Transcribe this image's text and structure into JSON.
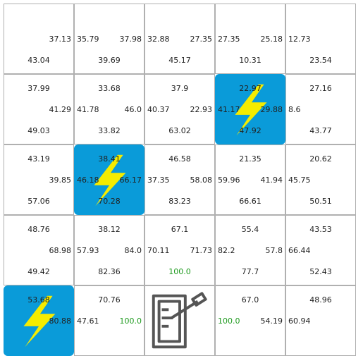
{
  "grid": {
    "rows": 5,
    "cols": 5,
    "cells": [
      {
        "row": 0,
        "col": 0,
        "type": "normal",
        "top": "",
        "left": "",
        "right": "37.13",
        "bottom": "43.04"
      },
      {
        "row": 0,
        "col": 1,
        "type": "normal",
        "top": "",
        "left": "35.79",
        "right": "37.98",
        "bottom": "39.69"
      },
      {
        "row": 0,
        "col": 2,
        "type": "normal",
        "top": "",
        "left": "32.88",
        "right": "27.35",
        "bottom": "45.17"
      },
      {
        "row": 0,
        "col": 3,
        "type": "normal",
        "top": "",
        "left": "27.35",
        "right": "25.18",
        "bottom": "10.31"
      },
      {
        "row": 0,
        "col": 4,
        "type": "normal",
        "top": "",
        "left": "12.73",
        "right": "",
        "bottom": "23.54"
      },
      {
        "row": 1,
        "col": 0,
        "type": "normal",
        "top": "37.99",
        "left": "",
        "right": "41.29",
        "bottom": "49.03"
      },
      {
        "row": 1,
        "col": 1,
        "type": "normal",
        "top": "33.68",
        "left": "41.78",
        "right": "46.0",
        "bottom": "33.82"
      },
      {
        "row": 1,
        "col": 2,
        "type": "normal",
        "top": "37.9",
        "left": "40.37",
        "right": "22.93",
        "bottom": "63.02"
      },
      {
        "row": 1,
        "col": 3,
        "type": "lightning",
        "icon": "lightning-icon",
        "top": "22.97",
        "left": "41.17",
        "right": "29.88",
        "bottom": "47.92"
      },
      {
        "row": 1,
        "col": 4,
        "type": "normal",
        "top": "27.16",
        "left": "8.6",
        "right": "",
        "bottom": "43.77"
      },
      {
        "row": 2,
        "col": 0,
        "type": "normal",
        "top": "43.19",
        "left": "",
        "right": "39.85",
        "bottom": "57.06"
      },
      {
        "row": 2,
        "col": 1,
        "type": "lightning",
        "icon": "lightning-icon",
        "top": "38.41",
        "left": "46.18",
        "right": "66.17",
        "bottom": "70.28"
      },
      {
        "row": 2,
        "col": 2,
        "type": "normal",
        "top": "46.58",
        "left": "37.35",
        "right": "58.08",
        "bottom": "83.23"
      },
      {
        "row": 2,
        "col": 3,
        "type": "normal",
        "top": "21.35",
        "left": "59.96",
        "right": "41.94",
        "bottom": "66.61"
      },
      {
        "row": 2,
        "col": 4,
        "type": "normal",
        "top": "20.62",
        "left": "45.75",
        "right": "",
        "bottom": "50.51"
      },
      {
        "row": 3,
        "col": 0,
        "type": "normal",
        "top": "48.76",
        "left": "",
        "right": "68.98",
        "bottom": "49.42"
      },
      {
        "row": 3,
        "col": 1,
        "type": "normal",
        "top": "38.12",
        "left": "57.93",
        "right": "84.0",
        "bottom": "82.36"
      },
      {
        "row": 3,
        "col": 2,
        "type": "normal",
        "top": "67.1",
        "left": "70.11",
        "right": "71.73",
        "bottom": "100.0",
        "bottom_good": true
      },
      {
        "row": 3,
        "col": 3,
        "type": "normal",
        "top": "55.4",
        "left": "82.2",
        "right": "57.8",
        "bottom": "77.7"
      },
      {
        "row": 3,
        "col": 4,
        "type": "normal",
        "top": "43.53",
        "left": "66.44",
        "right": "",
        "bottom": "52.43"
      },
      {
        "row": 4,
        "col": 0,
        "type": "lightning",
        "icon": "lightning-icon",
        "top": "53.68",
        "left": "",
        "right": "80.88",
        "bottom": ""
      },
      {
        "row": 4,
        "col": 1,
        "type": "normal",
        "top": "70.76",
        "left": "47.61",
        "right": "100.0",
        "right_good": true,
        "bottom": ""
      },
      {
        "row": 4,
        "col": 2,
        "type": "goal",
        "icon": "exit-door-icon",
        "top": "",
        "left": "",
        "right": "",
        "bottom": ""
      },
      {
        "row": 4,
        "col": 3,
        "type": "normal",
        "top": "67.0",
        "left": "100.0",
        "left_good": true,
        "right": "54.19",
        "bottom": ""
      },
      {
        "row": 4,
        "col": 4,
        "type": "normal",
        "top": "48.96",
        "left": "60.94",
        "right": "",
        "bottom": ""
      }
    ]
  },
  "colors": {
    "lightning_bg": "#0a9bd9",
    "lightning_bolt": "#f5ec00",
    "good_value": "#1e9a1e",
    "door_stroke": "#555555"
  }
}
